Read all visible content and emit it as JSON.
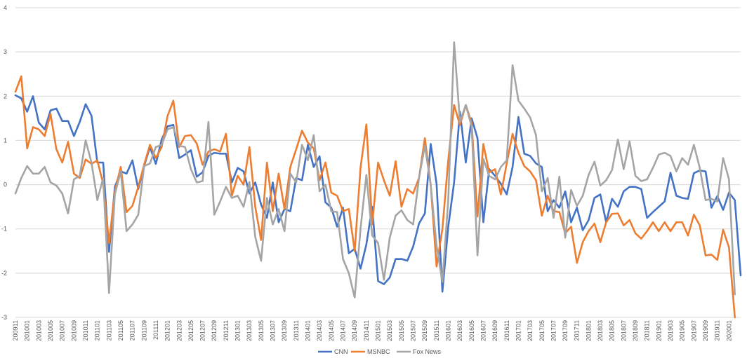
{
  "chart_data": {
    "type": "line",
    "title": "",
    "xlabel": "",
    "ylabel": "",
    "ylim": [
      -3,
      4
    ],
    "yticks": [
      -3,
      -2,
      -1,
      0,
      1,
      2,
      3,
      4
    ],
    "grid": true,
    "legend_position": "bottom",
    "x_start": "200911",
    "x_end": "202001",
    "x_tick_labels": [
      "200911",
      "201001",
      "201003",
      "201005",
      "201007",
      "201009",
      "201011",
      "201101",
      "201103",
      "201105",
      "201107",
      "201109",
      "201111",
      "201201",
      "201203",
      "201205",
      "201207",
      "201209",
      "201211",
      "201301",
      "201303",
      "201305",
      "201307",
      "201309",
      "201311",
      "201401",
      "201403",
      "201405",
      "201407",
      "201409",
      "201411",
      "201501",
      "201503",
      "201505",
      "201507",
      "201509",
      "201511",
      "201601",
      "201603",
      "201605",
      "201607",
      "201609",
      "201611",
      "201701",
      "201703",
      "201705",
      "201707",
      "201709",
      "201711",
      "201801",
      "201803",
      "201805",
      "201807",
      "201809",
      "201811",
      "201901",
      "201903",
      "201905",
      "201907",
      "201909",
      "201911",
      "202001"
    ],
    "series": [
      {
        "name": "CNN",
        "color": "#4472C4",
        "values": [
          2.02,
          1.95,
          1.65,
          2.0,
          1.4,
          1.25,
          1.68,
          1.72,
          1.44,
          1.44,
          1.1,
          1.42,
          1.82,
          1.56,
          0.5,
          0.5,
          -1.52,
          -0.05,
          0.3,
          0.25,
          0.55,
          -0.1,
          0.42,
          0.85,
          0.47,
          1.02,
          1.32,
          1.35,
          0.6,
          0.68,
          0.78,
          0.18,
          0.28,
          0.65,
          0.72,
          0.7,
          0.7,
          0.05,
          0.38,
          0.3,
          -0.2,
          0.05,
          -0.45,
          -0.75,
          0.05,
          -0.85,
          -0.55,
          -0.6,
          0.15,
          0.1,
          0.9,
          0.4,
          0.64,
          -0.4,
          -0.52,
          -0.95,
          -0.52,
          -1.55,
          -1.45,
          -1.9,
          -1.35,
          -0.5,
          -2.18,
          -2.25,
          -2.1,
          -1.68,
          -1.68,
          -1.72,
          -1.4,
          -0.88,
          -0.65,
          0.92,
          0.02,
          -2.42,
          -0.95,
          0.05,
          1.65,
          0.5,
          1.5,
          1.05,
          -0.85,
          0.35,
          0.2,
          0.02,
          -0.22,
          0.4,
          1.53,
          0.7,
          0.65,
          0.48,
          0.4,
          -0.6,
          -0.35,
          -0.52,
          -0.15,
          -0.85,
          -0.52,
          -1.03,
          -0.8,
          -0.3,
          -0.22,
          -0.85,
          -0.32,
          -0.5,
          -0.15,
          -0.05,
          -0.05,
          -0.1,
          -0.75,
          -0.62,
          -0.5,
          -0.38,
          0.27,
          -0.25,
          -0.3,
          -0.32,
          0.26,
          0.32,
          0.3,
          -0.52,
          -0.26,
          -0.57,
          -0.18,
          -0.35,
          -2.05
        ]
      },
      {
        "name": "MSNBC",
        "color": "#ED7D31",
        "values": [
          2.1,
          2.45,
          0.82,
          1.3,
          1.25,
          1.1,
          1.6,
          0.8,
          0.5,
          0.97,
          0.25,
          0.15,
          0.57,
          0.47,
          0.55,
          0.02,
          -1.32,
          -0.15,
          0.4,
          -0.62,
          -0.48,
          -0.05,
          0.45,
          0.9,
          0.6,
          0.85,
          1.55,
          1.9,
          0.85,
          1.1,
          1.12,
          0.93,
          0.45,
          0.75,
          0.8,
          0.75,
          1.15,
          -0.25,
          0.2,
          0.0,
          0.85,
          -0.5,
          -1.25,
          0.5,
          -0.6,
          0.25,
          -0.55,
          0.4,
          0.8,
          1.22,
          0.95,
          0.82,
          0.1,
          0.5,
          -0.18,
          -0.25,
          -0.6,
          -0.55,
          -1.5,
          0.38,
          1.36,
          -0.9,
          0.5,
          0.1,
          -0.25,
          0.53,
          -0.5,
          -0.1,
          -0.2,
          0.15,
          1.05,
          0.0,
          -1.85,
          -1.0,
          0.55,
          1.8,
          1.35,
          1.8,
          1.4,
          -0.72,
          0.92,
          0.28,
          0.35,
          -0.22,
          0.48,
          1.15,
          0.72,
          0.42,
          0.3,
          0.1,
          -0.7,
          -0.25,
          -0.6,
          -0.62,
          -1.1,
          -0.95,
          -1.77,
          -1.3,
          -1.05,
          -0.88,
          -1.3,
          -0.85,
          -0.66,
          -0.65,
          -0.92,
          -0.8,
          -1.1,
          -1.22,
          -1.05,
          -0.85,
          -1.05,
          -0.85,
          -1.05,
          -0.85,
          -0.85,
          -1.15,
          -0.68,
          -0.92,
          -1.6,
          -1.58,
          -1.7,
          -1.02,
          -1.42,
          -3.0
        ]
      },
      {
        "name": "Fox News",
        "color": "#A5A5A5",
        "values": [
          -0.2,
          0.15,
          0.42,
          0.25,
          0.25,
          0.4,
          0.05,
          -0.02,
          -0.2,
          -0.65,
          0.12,
          0.2,
          1.0,
          0.5,
          -0.35,
          0.15,
          -2.45,
          -0.22,
          0.3,
          -1.05,
          -0.9,
          -0.68,
          0.42,
          0.48,
          0.85,
          0.9,
          1.25,
          1.3,
          0.88,
          0.85,
          0.35,
          0.05,
          0.08,
          1.42,
          -0.68,
          -0.38,
          -0.05,
          -0.3,
          -0.25,
          -0.5,
          0.06,
          -1.18,
          -1.72,
          -0.3,
          -0.9,
          -0.55,
          -1.05,
          0.25,
          0.05,
          0.9,
          0.55,
          1.12,
          -0.15,
          0.0,
          -0.6,
          -0.62,
          -1.68,
          -2.0,
          -2.55,
          -1.0,
          0.22,
          -1.15,
          -1.32,
          -2.15,
          -1.2,
          -0.7,
          -0.58,
          -0.8,
          -0.9,
          0.15,
          0.88,
          0.0,
          -1.38,
          -2.2,
          -0.35,
          3.22,
          1.42,
          1.8,
          1.32,
          -1.6,
          0.58,
          0.2,
          0.12,
          0.4,
          0.55,
          2.7,
          1.9,
          1.72,
          1.52,
          1.12,
          -0.15,
          0.15,
          -0.75,
          0.18,
          -1.2,
          -0.12,
          -0.48,
          -0.25,
          0.22,
          0.52,
          -0.02,
          0.1,
          0.33,
          1.02,
          0.35,
          0.98,
          0.2,
          0.08,
          0.12,
          0.38,
          0.68,
          0.72,
          0.65,
          0.3,
          0.6,
          0.45,
          0.9,
          0.38,
          -0.35,
          -0.32,
          -0.38,
          0.6,
          0.12,
          -2.48
        ]
      }
    ]
  }
}
